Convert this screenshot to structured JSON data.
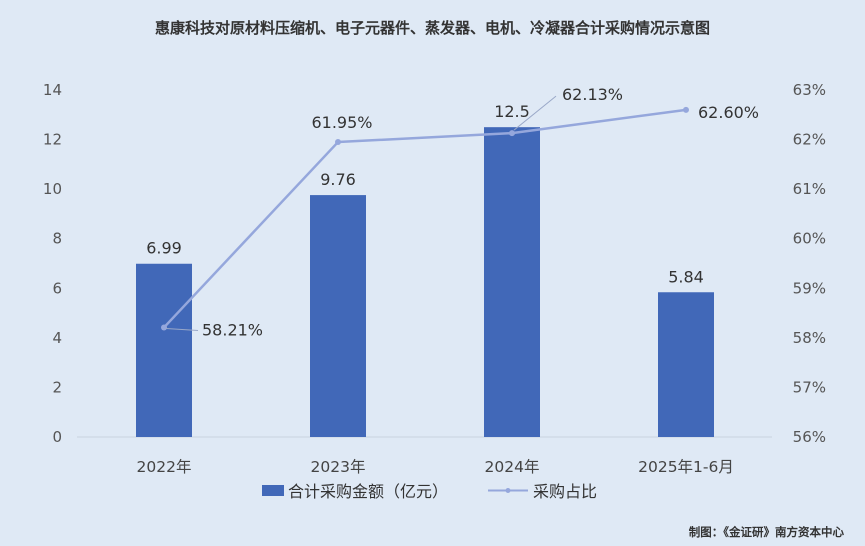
{
  "chart_data": {
    "type": "bar",
    "title": "惠康科技对原材料压缩机、电子元器件、蒸发器、电机、冷凝器合计采购情况示意图",
    "categories": [
      "2022年",
      "2023年",
      "2024年",
      "2025年1-6月"
    ],
    "series": [
      {
        "name": "合计采购金额（亿元）",
        "type": "bar",
        "axis": "left",
        "values": [
          6.99,
          9.76,
          12.5,
          5.84
        ],
        "labels": [
          "6.99",
          "9.76",
          "12.5",
          "5.84"
        ],
        "color": "#4168b8"
      },
      {
        "name": "采购占比",
        "type": "line",
        "axis": "right",
        "values": [
          58.21,
          61.95,
          62.13,
          62.6
        ],
        "labels": [
          "58.21%",
          "61.95%",
          "62.13%",
          "62.60%"
        ],
        "color": "#95a7dc"
      }
    ],
    "y_left": {
      "min": 0,
      "max": 14,
      "ticks": [
        "0",
        "2",
        "4",
        "6",
        "8",
        "10",
        "12",
        "14"
      ]
    },
    "y_right": {
      "min": 56,
      "max": 63,
      "ticks": [
        "56%",
        "57%",
        "58%",
        "59%",
        "60%",
        "61%",
        "62%",
        "63%"
      ]
    },
    "grid": false,
    "legend_position": "bottom"
  },
  "source_note": "制图：《金证研》南方资本中心"
}
